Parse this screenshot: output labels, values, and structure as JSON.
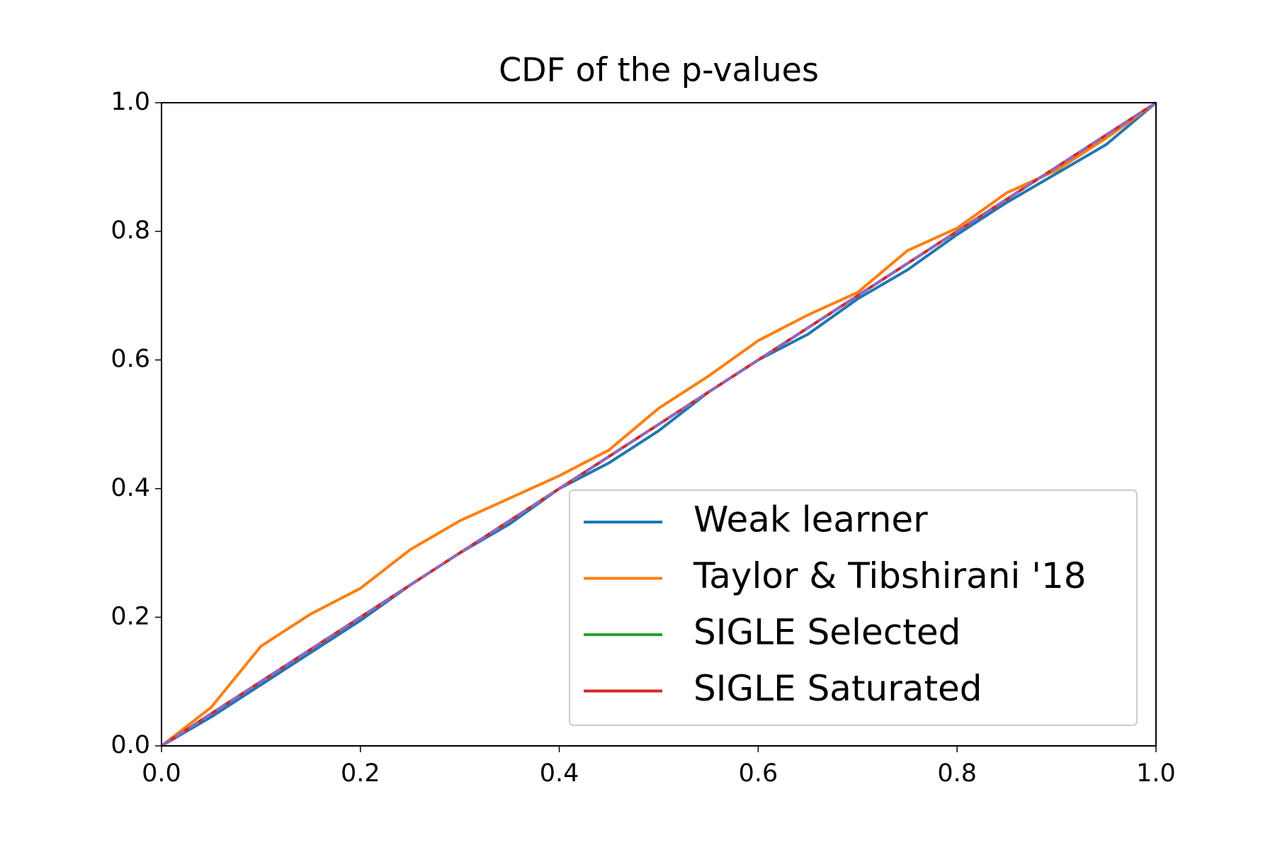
{
  "chart_data": {
    "type": "line",
    "title": "CDF of the p-values",
    "x": [
      0,
      0.05,
      0.1,
      0.15,
      0.2,
      0.25,
      0.3,
      0.35,
      0.4,
      0.45,
      0.5,
      0.55,
      0.6,
      0.65,
      0.7,
      0.75,
      0.8,
      0.85,
      0.9,
      0.95,
      1
    ],
    "series": [
      {
        "name": "Weak learner",
        "color": "#1f77b4",
        "values": [
          0,
          0.045,
          0.095,
          0.145,
          0.195,
          0.25,
          0.3,
          0.345,
          0.4,
          0.44,
          0.49,
          0.55,
          0.6,
          0.64,
          0.695,
          0.74,
          0.795,
          0.845,
          0.89,
          0.935,
          1
        ]
      },
      {
        "name": "Taylor & Tibshirani '18",
        "color": "#ff7f0e",
        "values": [
          0,
          0.06,
          0.155,
          0.205,
          0.245,
          0.305,
          0.35,
          0.385,
          0.42,
          0.46,
          0.525,
          0.575,
          0.63,
          0.67,
          0.705,
          0.77,
          0.805,
          0.86,
          0.895,
          0.945,
          1
        ]
      },
      {
        "name": "SIGLE Selected",
        "color": "#2ca02c",
        "values": [
          0,
          0.05,
          0.1,
          0.15,
          0.2,
          0.25,
          0.3,
          0.35,
          0.4,
          0.45,
          0.5,
          0.55,
          0.6,
          0.65,
          0.7,
          0.75,
          0.8,
          0.85,
          0.9,
          0.95,
          1
        ]
      },
      {
        "name": "SIGLE Saturated",
        "color": "#d62728",
        "values": [
          0,
          0.05,
          0.1,
          0.15,
          0.2,
          0.25,
          0.3,
          0.35,
          0.4,
          0.45,
          0.5,
          0.55,
          0.6,
          0.65,
          0.7,
          0.75,
          0.8,
          0.85,
          0.9,
          0.95,
          1
        ]
      },
      {
        "color": "#9467bd",
        "dashed": true,
        "values": [
          0,
          0.05,
          0.1,
          0.15,
          0.2,
          0.25,
          0.3,
          0.35,
          0.4,
          0.45,
          0.5,
          0.55,
          0.6,
          0.65,
          0.7,
          0.75,
          0.8,
          0.85,
          0.9,
          0.95,
          1
        ]
      }
    ],
    "xlim": [
      0,
      1
    ],
    "ylim": [
      0,
      1
    ],
    "xticks": [
      {
        "value": 0,
        "label": "0.0"
      },
      0.2,
      0.4,
      0.6,
      0.8,
      {
        "value": 1,
        "label": "1.0"
      }
    ],
    "yticks": [
      {
        "value": 0,
        "label": "0.0"
      },
      0.2,
      0.4,
      0.6,
      0.8,
      {
        "value": 1,
        "label": "1.0"
      }
    ],
    "legend": "lower right"
  }
}
